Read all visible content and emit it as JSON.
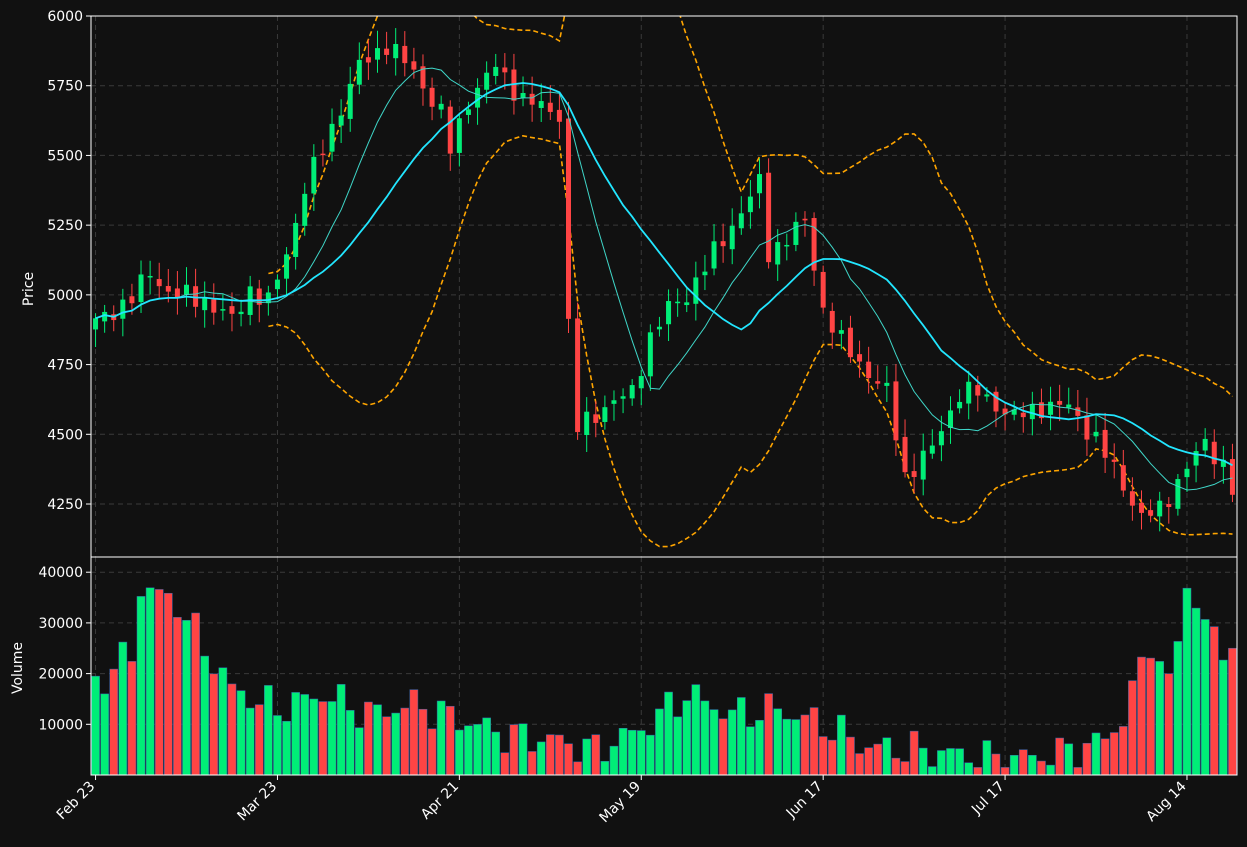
{
  "chart_data": [
    {
      "type": "candlestick",
      "panel": "price",
      "ylabel": "Price",
      "ylim": [
        4060,
        6000
      ],
      "yticks": [
        4250,
        4500,
        4750,
        5000,
        5250,
        5500,
        5750,
        6000
      ],
      "grid": true,
      "up_color": "#00ee77",
      "down_color": "#ff4444",
      "overlays": [
        {
          "kind": "moving-average-long",
          "color": "#22e6ff"
        },
        {
          "kind": "moving-average-short",
          "color": "#3fd6c8"
        },
        {
          "kind": "bollinger-bands",
          "color": "#ffa500",
          "style": "dashed"
        }
      ]
    },
    {
      "type": "bar",
      "panel": "volume",
      "ylabel": "Volume",
      "ylim": [
        0,
        43000
      ],
      "yticks": [
        10000,
        20000,
        30000,
        40000
      ],
      "grid": true
    }
  ],
  "x_axis": {
    "tick_labels": [
      {
        "label": "Feb 23",
        "index": 0
      },
      {
        "label": "Mar 23",
        "index": 20
      },
      {
        "label": "Apr 21",
        "index": 40
      },
      {
        "label": "May 19",
        "index": 60
      },
      {
        "label": "Jun 17",
        "index": 80
      },
      {
        "label": "Jul 17",
        "index": 100
      },
      {
        "label": "Aug 14",
        "index": 120
      }
    ],
    "bar_count": 126
  }
}
